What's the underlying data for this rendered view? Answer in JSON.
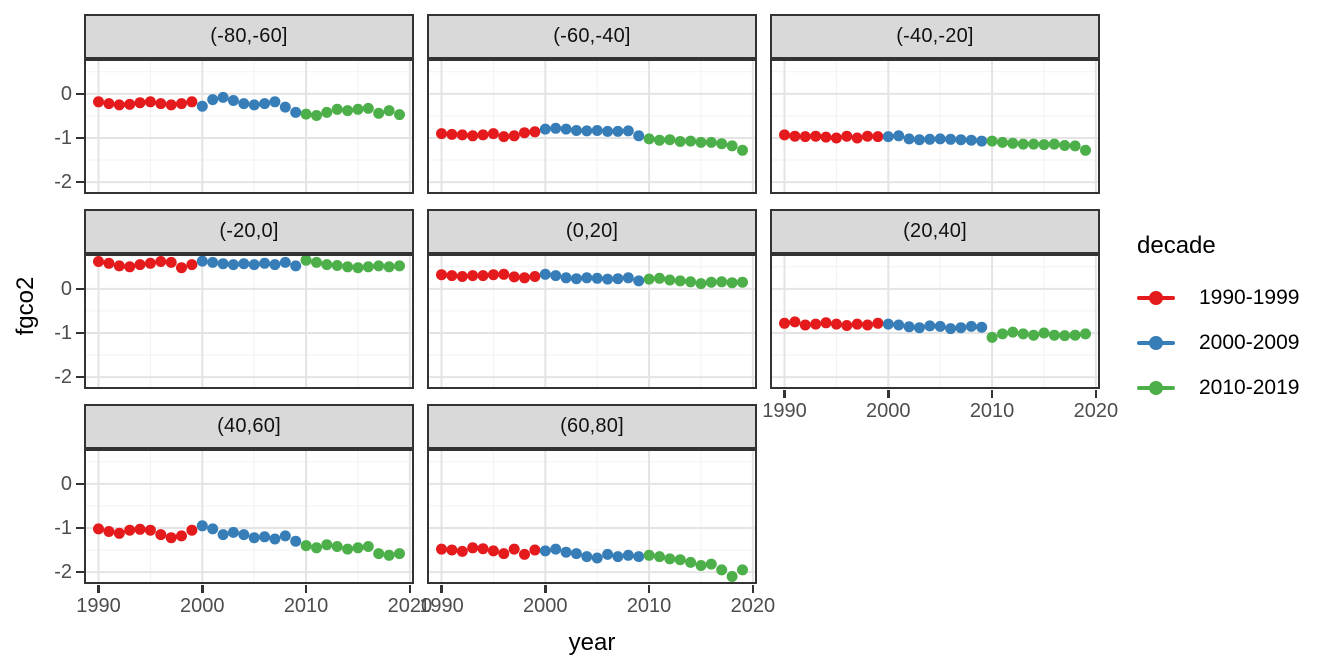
{
  "figure": {
    "background": "#FFFFFF",
    "x_axis_title": "year",
    "y_axis_title": "fgco2"
  },
  "legend": {
    "title": "decade",
    "items": [
      {
        "label": "1990-1999",
        "color": "#E41A1C"
      },
      {
        "label": "2000-2009",
        "color": "#377EB8"
      },
      {
        "label": "2010-2019",
        "color": "#4DAF4A"
      }
    ]
  },
  "chart_data": {
    "type": "scatter",
    "title": "",
    "xlabel": "year",
    "ylabel": "fgco2",
    "grid": true,
    "legend_position": "right",
    "facet_variable": "latitude band",
    "x_ticks": [
      1990,
      2000,
      2010,
      2020
    ],
    "y_ticks": [
      0,
      -1,
      -2
    ],
    "x_minor_ticks": [
      1995,
      2005,
      2015
    ],
    "y_minor_ticks": [
      0.5,
      -0.5,
      -1.5
    ],
    "xlim": [
      1988.6,
      2020.4
    ],
    "ylim": [
      -2.27,
      0.79
    ],
    "x": [
      1990,
      1991,
      1992,
      1993,
      1994,
      1995,
      1996,
      1997,
      1998,
      1999,
      2000,
      2001,
      2002,
      2003,
      2004,
      2005,
      2006,
      2007,
      2008,
      2009,
      2010,
      2011,
      2012,
      2013,
      2014,
      2015,
      2016,
      2017,
      2018,
      2019
    ],
    "decades": [
      {
        "label": "1990-1999",
        "color": "#E41A1C",
        "from": 1990,
        "to": 1999
      },
      {
        "label": "2000-2009",
        "color": "#377EB8",
        "from": 2000,
        "to": 2009
      },
      {
        "label": "2010-2019",
        "color": "#4DAF4A",
        "from": 2010,
        "to": 2019
      }
    ],
    "facets": [
      {
        "label": "(-80,-60]",
        "values": [
          -0.18,
          -0.22,
          -0.25,
          -0.24,
          -0.2,
          -0.18,
          -0.22,
          -0.25,
          -0.22,
          -0.18,
          -0.28,
          -0.13,
          -0.08,
          -0.15,
          -0.22,
          -0.25,
          -0.22,
          -0.18,
          -0.3,
          -0.42,
          -0.46,
          -0.49,
          -0.42,
          -0.35,
          -0.38,
          -0.35,
          -0.33,
          -0.44,
          -0.38,
          -0.47
        ]
      },
      {
        "label": "(-60,-40]",
        "values": [
          -0.9,
          -0.92,
          -0.93,
          -0.95,
          -0.93,
          -0.9,
          -0.97,
          -0.95,
          -0.88,
          -0.86,
          -0.8,
          -0.78,
          -0.8,
          -0.83,
          -0.84,
          -0.83,
          -0.85,
          -0.85,
          -0.84,
          -0.95,
          -1.02,
          -1.05,
          -1.04,
          -1.08,
          -1.07,
          -1.1,
          -1.1,
          -1.13,
          -1.18,
          -1.28
        ]
      },
      {
        "label": "(-40,-20]",
        "values": [
          -0.93,
          -0.96,
          -0.97,
          -0.96,
          -0.98,
          -1.0,
          -0.96,
          -1.0,
          -0.96,
          -0.97,
          -0.97,
          -0.95,
          -1.02,
          -1.04,
          -1.03,
          -1.02,
          -1.03,
          -1.04,
          -1.05,
          -1.07,
          -1.07,
          -1.1,
          -1.12,
          -1.14,
          -1.14,
          -1.15,
          -1.14,
          -1.17,
          -1.18,
          -1.28
        ]
      },
      {
        "label": "(-20,0]",
        "values": [
          0.62,
          0.58,
          0.52,
          0.5,
          0.55,
          0.58,
          0.62,
          0.6,
          0.48,
          0.55,
          0.63,
          0.6,
          0.57,
          0.55,
          0.57,
          0.55,
          0.58,
          0.55,
          0.6,
          0.52,
          0.65,
          0.6,
          0.55,
          0.53,
          0.5,
          0.48,
          0.5,
          0.52,
          0.5,
          0.52
        ]
      },
      {
        "label": "(0,20]",
        "values": [
          0.32,
          0.3,
          0.28,
          0.3,
          0.3,
          0.32,
          0.33,
          0.27,
          0.25,
          0.28,
          0.33,
          0.3,
          0.25,
          0.23,
          0.25,
          0.24,
          0.22,
          0.23,
          0.25,
          0.18,
          0.22,
          0.24,
          0.2,
          0.18,
          0.16,
          0.12,
          0.15,
          0.16,
          0.14,
          0.15
        ]
      },
      {
        "label": "(20,40]",
        "values": [
          -0.78,
          -0.75,
          -0.82,
          -0.8,
          -0.77,
          -0.8,
          -0.83,
          -0.8,
          -0.82,
          -0.78,
          -0.8,
          -0.82,
          -0.86,
          -0.88,
          -0.84,
          -0.85,
          -0.9,
          -0.88,
          -0.85,
          -0.87,
          -1.1,
          -1.02,
          -0.98,
          -1.02,
          -1.05,
          -1.0,
          -1.05,
          -1.06,
          -1.05,
          -1.02
        ]
      },
      {
        "label": "(40,60]",
        "values": [
          -1.02,
          -1.08,
          -1.12,
          -1.05,
          -1.03,
          -1.05,
          -1.15,
          -1.22,
          -1.18,
          -1.05,
          -0.95,
          -1.02,
          -1.15,
          -1.1,
          -1.15,
          -1.22,
          -1.2,
          -1.25,
          -1.18,
          -1.3,
          -1.4,
          -1.45,
          -1.38,
          -1.42,
          -1.48,
          -1.45,
          -1.42,
          -1.58,
          -1.62,
          -1.58
        ]
      },
      {
        "label": "(60,80]",
        "values": [
          -1.48,
          -1.5,
          -1.53,
          -1.45,
          -1.47,
          -1.52,
          -1.58,
          -1.48,
          -1.6,
          -1.5,
          -1.52,
          -1.48,
          -1.55,
          -1.58,
          -1.65,
          -1.68,
          -1.6,
          -1.65,
          -1.62,
          -1.65,
          -1.62,
          -1.65,
          -1.7,
          -1.72,
          -1.78,
          -1.85,
          -1.82,
          -1.95,
          -2.1,
          -1.95
        ]
      }
    ],
    "colors": {
      "strip_fill": "#D9D9D9",
      "panel_border": "#333333",
      "panel_background": "#FFFFFF",
      "grid_major": "#E4E4E4",
      "grid_minor": "#F2F2F2",
      "axis_text": "#4D4D4D",
      "tick_mark": "#333333"
    }
  }
}
